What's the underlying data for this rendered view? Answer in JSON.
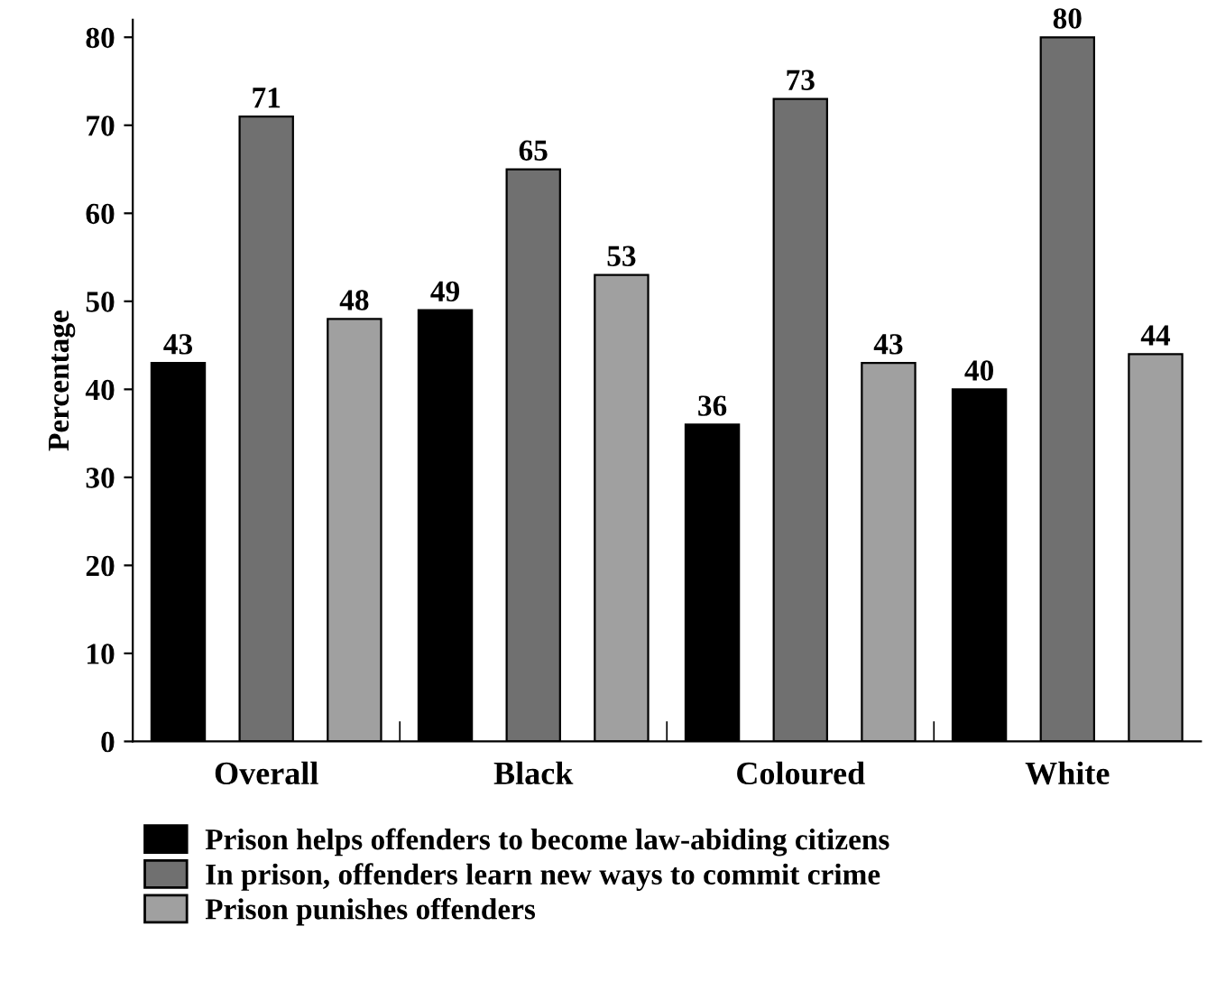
{
  "chart_data": {
    "type": "bar",
    "ylabel": "Percentage",
    "categories": [
      "Overall",
      "Black",
      "Coloured",
      "White"
    ],
    "series": [
      {
        "name": "Prison helps offenders to become law-abiding citizens",
        "color": "#000000",
        "values": [
          43,
          49,
          36,
          40
        ]
      },
      {
        "name": "In prison, offenders learn new ways to commit crime",
        "color": "#707070",
        "values": [
          71,
          65,
          73,
          80
        ]
      },
      {
        "name": "Prison punishes offenders",
        "color": "#a0a0a0",
        "values": [
          48,
          53,
          43,
          44
        ]
      }
    ],
    "ylim": [
      0,
      82
    ],
    "yticks": [
      0,
      10,
      20,
      30,
      40,
      50,
      60,
      70,
      80
    ],
    "data_labels": true,
    "grid": false,
    "legend": "bottom"
  }
}
